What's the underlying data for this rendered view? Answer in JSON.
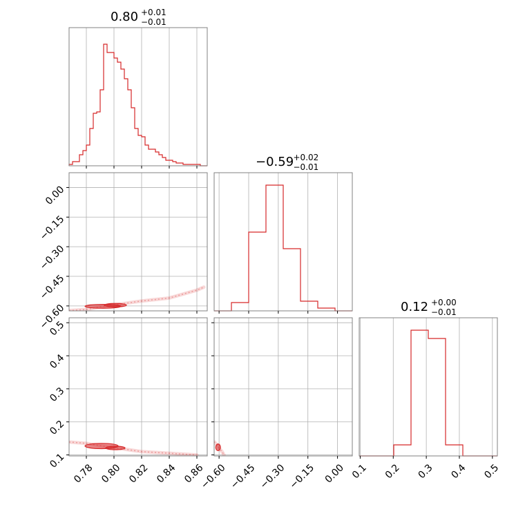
{
  "chart_data": {
    "type": "corner",
    "color": "#d62728",
    "parameters": [
      {
        "title": {
          "main": "0.80",
          "plus": "+0.01",
          "minus": "−0.01"
        },
        "range": [
          0.7675,
          0.8675
        ],
        "ticks": [
          0.78,
          0.8,
          0.82,
          0.84,
          0.86
        ],
        "tick_labels": [
          "0.78",
          "0.80",
          "0.82",
          "0.84",
          "0.86"
        ],
        "hist": [
          0.01,
          0.03,
          0.03,
          0.08,
          0.11,
          0.15,
          0.27,
          0.38,
          0.39,
          0.55,
          0.88,
          0.82,
          0.82,
          0.78,
          0.75,
          0.7,
          0.63,
          0.55,
          0.42,
          0.27,
          0.22,
          0.21,
          0.15,
          0.12,
          0.12,
          0.1,
          0.08,
          0.06,
          0.04,
          0.04,
          0.03,
          0.02,
          0.02,
          0.01,
          0.01,
          0.01,
          0.01,
          0.01,
          0.0,
          0.0
        ]
      },
      {
        "title": {
          "main": "−0.59",
          "plus": "+0.02",
          "minus": "−0.01"
        },
        "range": [
          -0.625,
          0.075
        ],
        "ticks": [
          -0.6,
          -0.45,
          -0.3,
          -0.15,
          0.0
        ],
        "tick_labels": [
          "−0.60",
          "−0.45",
          "−0.30",
          "−0.15",
          "0.00"
        ],
        "hist": [
          0.0,
          0.06,
          0.57,
          0.91,
          0.45,
          0.07,
          0.02,
          0.0
        ]
      },
      {
        "title": {
          "main": "0.12",
          "plus": "+0.00",
          "minus": "−0.01"
        },
        "range": [
          0.097,
          0.515
        ],
        "ticks": [
          0.1,
          0.2,
          0.3,
          0.4,
          0.5
        ],
        "tick_labels": [
          "0.1",
          "0.2",
          "0.3",
          "0.4",
          "0.5"
        ],
        "hist": [
          0.0,
          0.0,
          0.08,
          0.91,
          0.85,
          0.08,
          0.0,
          0.0
        ]
      }
    ],
    "pairs": [
      {
        "x_param": 0,
        "y_param": 1,
        "trend_points": [
          [
            0.765,
            -0.625
          ],
          [
            0.78,
            -0.618
          ],
          [
            0.79,
            -0.605
          ],
          [
            0.8,
            -0.595
          ],
          [
            0.81,
            -0.585
          ],
          [
            0.82,
            -0.575
          ],
          [
            0.84,
            -0.56
          ],
          [
            0.86,
            -0.52
          ],
          [
            0.865,
            -0.505
          ]
        ],
        "contours": [
          {
            "center": [
              0.792,
              -0.602
            ],
            "half_width": [
              0.013,
              0.01
            ]
          },
          {
            "center": [
              0.801,
              -0.596
            ],
            "half_width": [
              0.008,
              0.006
            ]
          }
        ]
      },
      {
        "x_param": 0,
        "y_param": 2,
        "trend_points": [
          [
            0.765,
            0.14
          ],
          [
            0.78,
            0.135
          ],
          [
            0.79,
            0.128
          ],
          [
            0.8,
            0.122
          ],
          [
            0.81,
            0.116
          ],
          [
            0.82,
            0.11
          ],
          [
            0.84,
            0.105
          ],
          [
            0.86,
            0.1
          ]
        ],
        "contours": [
          {
            "center": [
              0.791,
              0.127
            ],
            "half_width": [
              0.012,
              0.008
            ]
          },
          {
            "center": [
              0.801,
              0.121
            ],
            "half_width": [
              0.007,
              0.005
            ]
          }
        ]
      },
      {
        "x_param": 1,
        "y_param": 2,
        "trend_points": [
          [
            -0.625,
            0.14
          ],
          [
            -0.61,
            0.13
          ],
          [
            -0.6,
            0.12
          ],
          [
            -0.585,
            0.11
          ],
          [
            -0.575,
            0.1
          ]
        ],
        "contours": [
          {
            "center": [
              -0.605,
              0.123
            ],
            "half_width": [
              0.012,
              0.01
            ]
          }
        ]
      }
    ]
  }
}
